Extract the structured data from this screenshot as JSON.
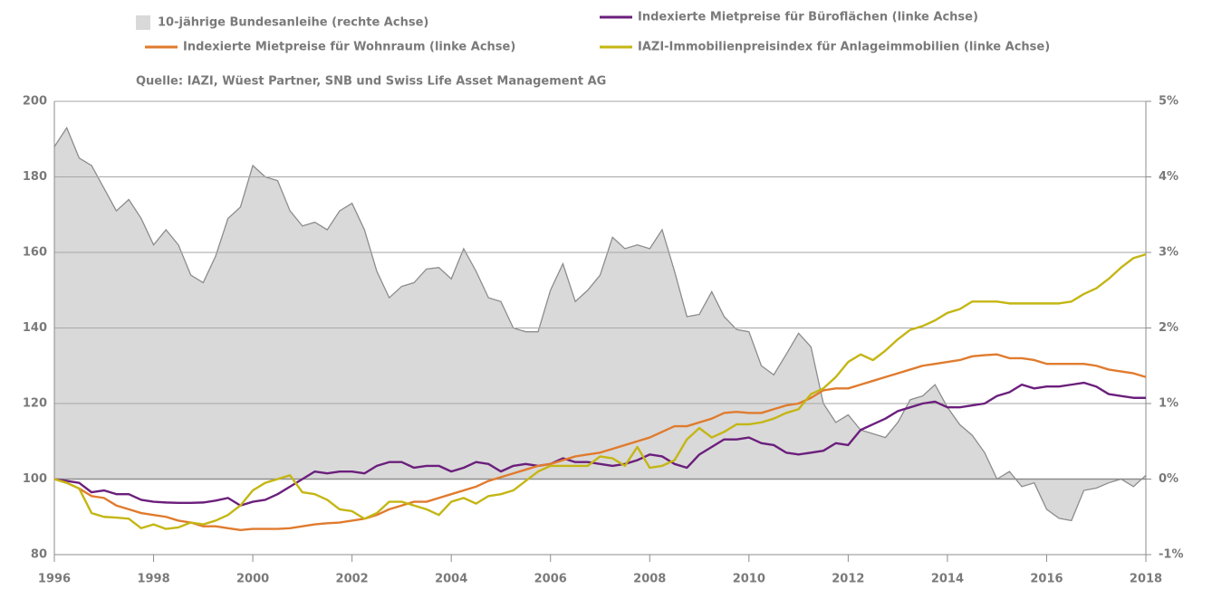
{
  "chart_data": {
    "type": "line",
    "legend": "top",
    "source": "Quelle: IAZI, Wüest Partner, SNB und Swiss Life Asset Management AG",
    "x": [
      1996,
      1996.25,
      1996.5,
      1996.75,
      1997,
      1997.25,
      1997.5,
      1997.75,
      1998,
      1998.25,
      1998.5,
      1998.75,
      1999,
      1999.25,
      1999.5,
      1999.75,
      2000,
      2000.25,
      2000.5,
      2000.75,
      2001,
      2001.25,
      2001.5,
      2001.75,
      2002,
      2002.25,
      2002.5,
      2002.75,
      2003,
      2003.25,
      2003.5,
      2003.75,
      2004,
      2004.25,
      2004.5,
      2004.75,
      2005,
      2005.25,
      2005.5,
      2005.75,
      2006,
      2006.25,
      2006.5,
      2006.75,
      2007,
      2007.25,
      2007.5,
      2007.75,
      2008,
      2008.25,
      2008.5,
      2008.75,
      2009,
      2009.25,
      2009.5,
      2009.75,
      2010,
      2010.25,
      2010.5,
      2010.75,
      2011,
      2011.25,
      2011.5,
      2011.75,
      2012,
      2012.25,
      2012.5,
      2012.75,
      2013,
      2013.25,
      2013.5,
      2013.75,
      2014,
      2014.25,
      2014.5,
      2014.75,
      2015,
      2015.25,
      2015.5,
      2015.75,
      2016,
      2016.25,
      2016.5,
      2016.75,
      2017,
      2017.25,
      2017.5,
      2017.75,
      2018
    ],
    "series": [
      {
        "name": "10-jährige Bundesanleihe (rechte Achse)",
        "type": "area",
        "axis": "y2",
        "color": "#d9d9d9",
        "stroke": "#8c8c8c",
        "values": [
          4.4,
          4.65,
          4.25,
          4.15,
          3.85,
          3.55,
          3.7,
          3.45,
          3.1,
          3.3,
          3.1,
          2.7,
          2.6,
          2.95,
          3.45,
          3.6,
          4.15,
          4.0,
          3.95,
          3.55,
          3.35,
          3.4,
          3.3,
          3.55,
          3.65,
          3.3,
          2.75,
          2.4,
          2.55,
          2.6,
          2.78,
          2.8,
          2.65,
          3.05,
          2.75,
          2.4,
          2.35,
          2.0,
          1.95,
          1.95,
          2.5,
          2.85,
          2.35,
          2.5,
          2.7,
          3.2,
          3.05,
          3.1,
          3.05,
          3.3,
          2.75,
          2.15,
          2.18,
          2.48,
          2.15,
          1.98,
          1.95,
          1.5,
          1.38,
          1.65,
          1.93,
          1.75,
          1.0,
          0.75,
          0.85,
          0.65,
          0.6,
          0.55,
          0.75,
          1.05,
          1.1,
          1.25,
          0.95,
          0.72,
          0.58,
          0.35,
          0,
          0.1,
          -0.1,
          -0.05,
          -0.4,
          -0.52,
          -0.55,
          -0.15,
          -0.12,
          -0.05,
          0,
          -0.1,
          0.05
        ]
      },
      {
        "name": "Indexierte Mietpreise für Büroflächen (linke Achse)",
        "color": "#6b1f7c",
        "values": [
          100,
          99.5,
          99,
          96.5,
          97,
          96,
          96,
          94.5,
          94,
          93.8,
          93.7,
          93.7,
          93.8,
          94.3,
          95,
          93,
          94,
          94.5,
          96,
          98,
          100,
          102,
          101.5,
          102,
          102,
          101.5,
          103.5,
          104.5,
          104.5,
          103,
          103.5,
          103.5,
          102,
          103,
          104.5,
          104,
          102,
          103.5,
          104,
          103.5,
          104,
          105.5,
          104.5,
          104.5,
          104,
          103.5,
          104,
          105,
          106.5,
          106,
          104,
          103,
          106.5,
          108.5,
          110.5,
          110.5,
          111,
          109.5,
          109,
          107,
          106.5,
          107,
          107.5,
          109.5,
          109,
          113,
          114.5,
          116,
          118,
          119,
          120,
          120.5,
          119,
          119,
          119.5,
          120,
          122,
          123,
          125,
          124,
          124.5,
          124.5,
          125,
          125.5,
          124.5,
          122.5,
          122,
          121.5,
          121.5
        ]
      },
      {
        "name": "Indexierte Mietpreise für Wohnraum (linke Achse)",
        "color": "#e07b2e",
        "values": [
          100,
          99,
          97.5,
          95.5,
          95,
          93,
          92,
          91,
          90.5,
          90,
          89,
          88.5,
          87.5,
          87.5,
          87,
          86.5,
          86.8,
          86.8,
          86.8,
          87,
          87.5,
          88,
          88.3,
          88.5,
          89,
          89.5,
          90.5,
          92,
          93,
          94,
          94,
          95,
          96,
          97,
          98,
          99.5,
          100.5,
          101.5,
          102.5,
          103.5,
          104,
          105,
          106,
          106.5,
          107,
          108,
          109,
          110,
          111,
          112.5,
          114,
          114,
          115,
          116,
          117.5,
          117.8,
          117.5,
          117.5,
          118.5,
          119.5,
          120,
          121.5,
          123.5,
          124,
          124,
          125,
          126,
          127,
          128,
          129,
          130,
          130.5,
          131,
          131.5,
          132.5,
          132.8,
          133,
          132,
          132,
          131.5,
          130.5,
          130.5,
          130.5,
          130.5,
          130,
          129,
          128.5,
          128,
          127
        ]
      },
      {
        "name": "IAZI-Immobilienpreisindex für Anlageimmobilien (linke Achse)",
        "color": "#c4b614",
        "values": [
          100,
          99,
          97.5,
          91,
          90,
          89.8,
          89.5,
          87,
          88,
          86.8,
          87.2,
          88.5,
          88,
          89,
          90.5,
          93,
          97,
          99,
          100,
          101,
          96.5,
          96,
          94.5,
          92,
          91.5,
          89.5,
          91,
          94,
          94,
          93,
          92,
          90.5,
          94,
          95,
          93.5,
          95.5,
          96,
          97,
          99.5,
          102,
          103.5,
          103.5,
          103.5,
          103.5,
          106,
          105.5,
          103.5,
          108.5,
          103,
          103.5,
          105,
          110.5,
          113.5,
          111,
          112.5,
          114.5,
          114.5,
          115,
          116,
          117.5,
          118.5,
          122.5,
          124,
          127,
          131,
          133,
          131.5,
          134,
          137,
          139.5,
          140.5,
          142,
          144,
          145,
          147,
          147,
          147,
          146.5,
          146.5,
          146.5,
          146.5,
          146.5,
          147,
          149,
          150.5,
          153,
          156,
          158.5,
          159.5
        ]
      }
    ],
    "xlim": [
      1996,
      2018
    ],
    "xticks": [
      1996,
      1998,
      2000,
      2002,
      2004,
      2006,
      2008,
      2010,
      2012,
      2014,
      2016,
      2018
    ],
    "ylim": [
      80,
      200
    ],
    "yticks": [
      80,
      100,
      120,
      140,
      160,
      180,
      200
    ],
    "y2lim": [
      -1,
      5
    ],
    "y2ticks": [
      {
        "value": -1,
        "label": "-1%"
      },
      {
        "value": 0,
        "label": "0%"
      },
      {
        "value": 1,
        "label": "1%"
      },
      {
        "value": 2,
        "label": "2%"
      },
      {
        "value": 3,
        "label": "3%"
      },
      {
        "value": 4,
        "label": "4%"
      },
      {
        "value": 5,
        "label": "5%"
      }
    ],
    "grid": true
  }
}
